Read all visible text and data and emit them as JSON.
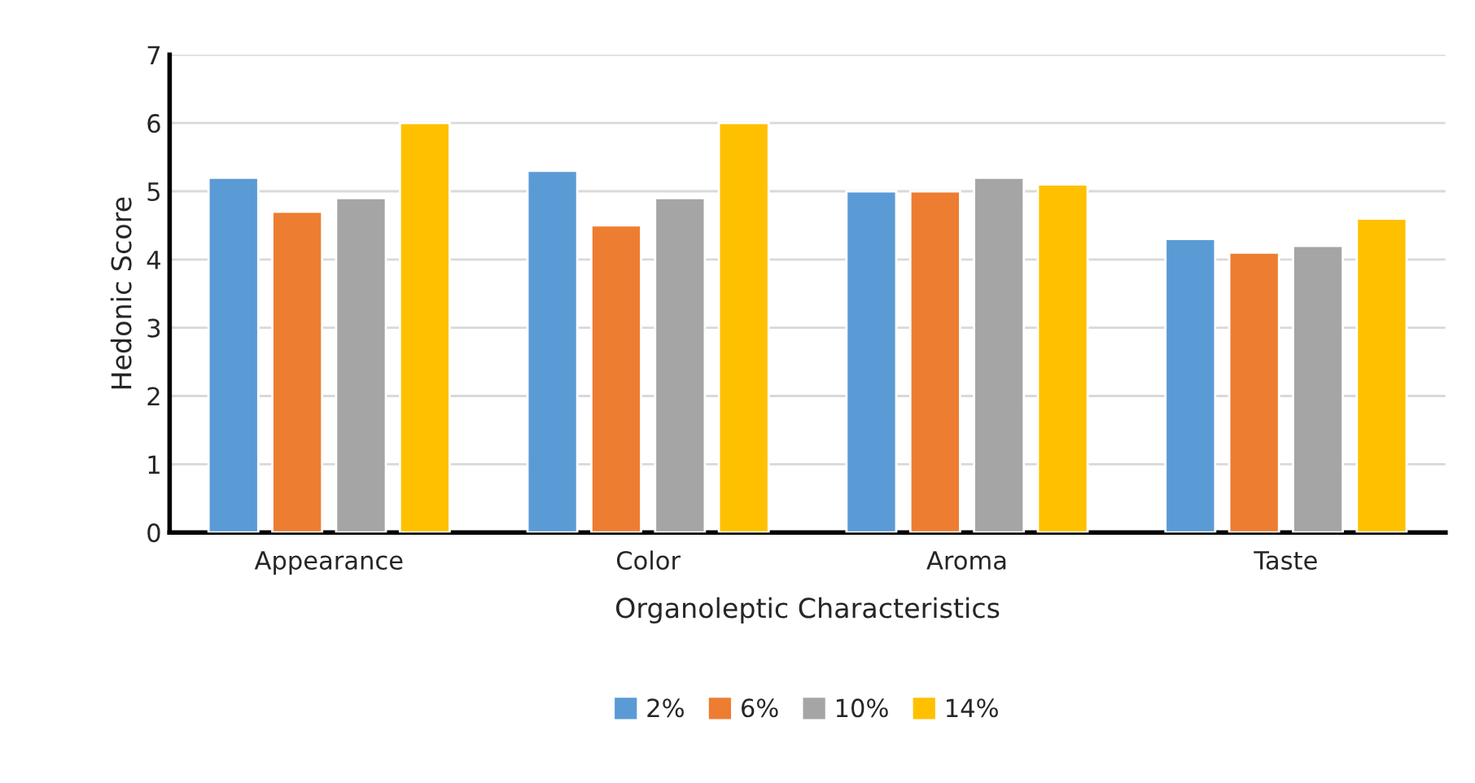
{
  "chart_data": {
    "type": "bar",
    "xlabel": "Organoleptic Characteristics",
    "ylabel": "Hedonic Score",
    "categories": [
      "Appearance",
      "Color",
      "Aroma",
      "Taste"
    ],
    "series": [
      {
        "name": "2%",
        "color": "#5b9bd5",
        "values": [
          5.2,
          5.3,
          5.0,
          4.3
        ]
      },
      {
        "name": "6%",
        "color": "#ed7d31",
        "values": [
          4.7,
          4.5,
          5.0,
          4.1
        ]
      },
      {
        "name": "10%",
        "color": "#a5a5a5",
        "values": [
          4.9,
          4.9,
          5.2,
          4.2
        ]
      },
      {
        "name": "14%",
        "color": "#ffc000",
        "values": [
          6.0,
          6.0,
          5.1,
          4.6
        ]
      }
    ],
    "ylim": [
      0,
      7
    ],
    "yticks": [
      0,
      1,
      2,
      3,
      4,
      5,
      6,
      7
    ],
    "grid": "y",
    "legend": "bottom"
  }
}
